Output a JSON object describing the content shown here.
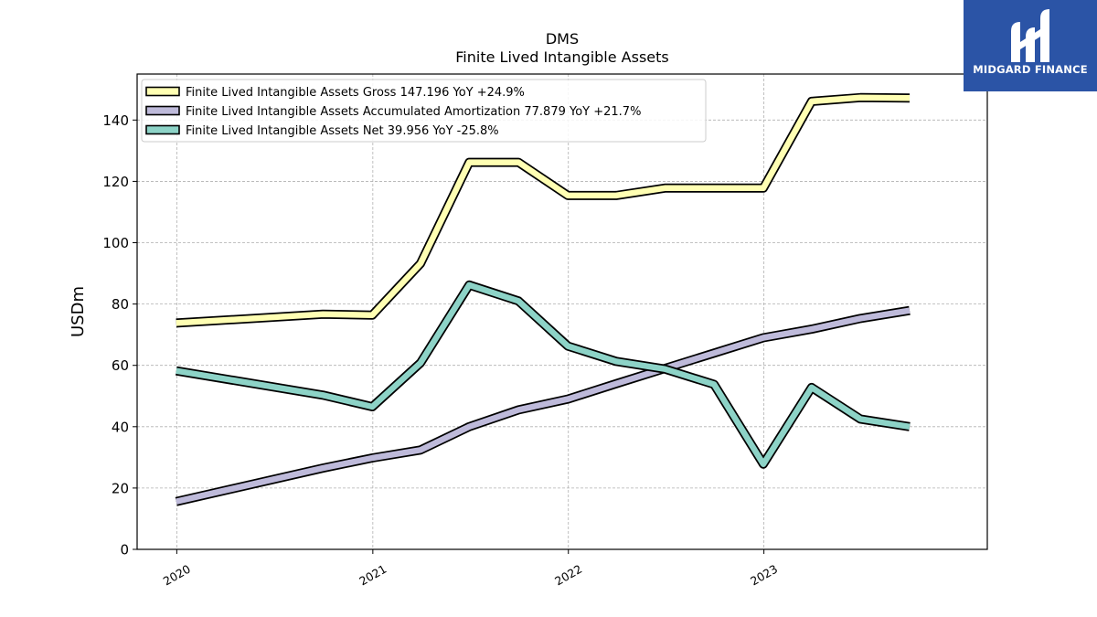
{
  "brand": {
    "name": "MIDGARD FINANCE",
    "logo_icon": "midgard-m-logo-icon",
    "background_color": "#2b54a6"
  },
  "chart_data": {
    "type": "line",
    "title": "DMS",
    "subtitle": "Finite Lived Intangible Assets",
    "ylabel": "USDm",
    "xlabel": "",
    "ylim": [
      0,
      155
    ],
    "yticks": [
      0,
      20,
      40,
      60,
      80,
      100,
      120,
      140
    ],
    "xticks": [
      "2020",
      "2021",
      "2022",
      "2023"
    ],
    "xlim": [
      "2019-10-19",
      "2024-02-22"
    ],
    "grid": true,
    "legend_position": "top-left",
    "x": [
      "2019-12-31",
      "2020-09-30",
      "2020-12-31",
      "2021-03-31",
      "2021-06-30",
      "2021-09-30",
      "2021-12-31",
      "2022-03-31",
      "2022-06-30",
      "2022-09-30",
      "2022-12-31",
      "2023-03-31",
      "2023-06-30",
      "2023-09-30"
    ],
    "series": [
      {
        "name": "Finite Lived Intangible Assets Gross",
        "legend_label": "Finite Lived Intangible Assets Gross  147.196 YoY +24.9%",
        "color": "#ffffb3",
        "values": [
          73.8,
          76.7,
          76.4,
          93.2,
          126.2,
          126.2,
          115.4,
          115.4,
          117.8,
          117.8,
          117.8,
          146.1,
          147.3,
          147.2
        ]
      },
      {
        "name": "Finite Lived Intangible Assets Accumulated Amortization",
        "legend_label": "Finite Lived Intangible Assets Accumulated Amortization  77.879 YoY +21.7%",
        "color": "#bebada",
        "values": [
          15.6,
          26.5,
          29.8,
          32.4,
          40.0,
          45.5,
          49.0,
          54.0,
          59.0,
          64.0,
          69.0,
          71.8,
          75.3,
          77.9
        ]
      },
      {
        "name": "Finite Lived Intangible Assets Net",
        "legend_label": "Finite Lived Intangible Assets Net  39.956 YoY -25.8%",
        "color": "#8dd3c7",
        "values": [
          58.2,
          50.3,
          46.5,
          60.8,
          86.2,
          81.0,
          66.3,
          61.3,
          58.8,
          53.8,
          27.8,
          52.8,
          42.5,
          40.0
        ]
      }
    ]
  }
}
